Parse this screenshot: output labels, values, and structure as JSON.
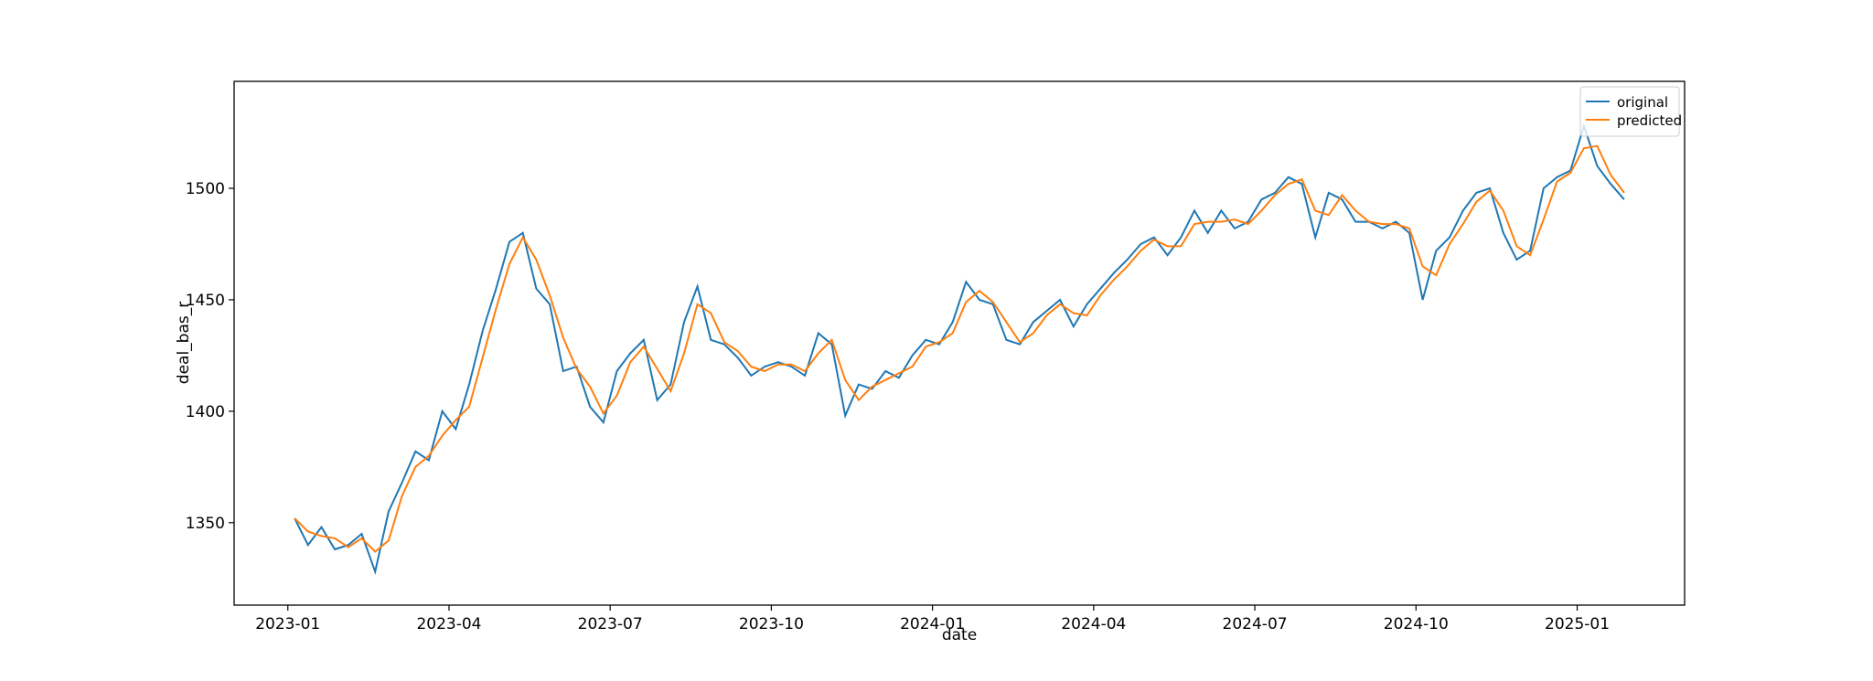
{
  "chart_data": {
    "type": "line",
    "x_label": "date",
    "y_label": "deal_bas_r",
    "x": [
      "2023-01",
      "2023-01",
      "2023-01",
      "2023-01",
      "2023-02",
      "2023-02",
      "2023-02",
      "2023-02",
      "2023-03",
      "2023-03",
      "2023-03",
      "2023-03",
      "2023-04",
      "2023-04",
      "2023-04",
      "2023-04",
      "2023-05",
      "2023-05",
      "2023-05",
      "2023-05",
      "2023-06",
      "2023-06",
      "2023-06",
      "2023-06",
      "2023-07",
      "2023-07",
      "2023-07",
      "2023-07",
      "2023-08",
      "2023-08",
      "2023-08",
      "2023-08",
      "2023-09",
      "2023-09",
      "2023-09",
      "2023-09",
      "2023-10",
      "2023-10",
      "2023-10",
      "2023-10",
      "2023-11",
      "2023-11",
      "2023-11",
      "2023-11",
      "2023-12",
      "2023-12",
      "2023-12",
      "2023-12",
      "2024-01",
      "2024-01",
      "2024-01",
      "2024-01",
      "2024-02",
      "2024-02",
      "2024-02",
      "2024-02",
      "2024-03",
      "2024-03",
      "2024-03",
      "2024-03",
      "2024-04",
      "2024-04",
      "2024-04",
      "2024-04",
      "2024-05",
      "2024-05",
      "2024-05",
      "2024-05",
      "2024-06",
      "2024-06",
      "2024-06",
      "2024-06",
      "2024-07",
      "2024-07",
      "2024-07",
      "2024-07",
      "2024-08",
      "2024-08",
      "2024-08",
      "2024-08",
      "2024-09",
      "2024-09",
      "2024-09",
      "2024-09",
      "2024-10",
      "2024-10",
      "2024-10",
      "2024-10",
      "2024-11",
      "2024-11",
      "2024-11",
      "2024-11",
      "2024-12",
      "2024-12",
      "2024-12",
      "2024-12",
      "2025-01",
      "2025-01",
      "2025-01",
      "2025-01"
    ],
    "series": [
      {
        "name": "original",
        "color": "#1f77b4",
        "values": [
          1352,
          1340,
          1348,
          1338,
          1340,
          1345,
          1328,
          1355,
          1368,
          1382,
          1378,
          1400,
          1392,
          1412,
          1436,
          1455,
          1476,
          1480,
          1455,
          1448,
          1418,
          1420,
          1402,
          1395,
          1418,
          1426,
          1432,
          1405,
          1412,
          1440,
          1456,
          1432,
          1430,
          1424,
          1416,
          1420,
          1422,
          1420,
          1416,
          1435,
          1430,
          1398,
          1412,
          1410,
          1418,
          1415,
          1425,
          1432,
          1430,
          1440,
          1458,
          1450,
          1448,
          1432,
          1430,
          1440,
          1445,
          1450,
          1438,
          1448,
          1455,
          1462,
          1468,
          1475,
          1478,
          1470,
          1478,
          1490,
          1480,
          1490,
          1482,
          1485,
          1495,
          1498,
          1505,
          1502,
          1478,
          1498,
          1495,
          1485,
          1485,
          1482,
          1485,
          1480,
          1450,
          1472,
          1478,
          1490,
          1498,
          1500,
          1480,
          1468,
          1472,
          1500,
          1505,
          1508,
          1528,
          1510,
          1502,
          1495
        ]
      },
      {
        "name": "predicted",
        "color": "#ff7f0e",
        "values": [
          1352,
          1346,
          1344,
          1343,
          1339,
          1343,
          1337,
          1342,
          1362,
          1375,
          1380,
          1389,
          1396,
          1402,
          1424,
          1446,
          1466,
          1478,
          1468,
          1452,
          1433,
          1419,
          1411,
          1399,
          1407,
          1422,
          1429,
          1419,
          1409,
          1426,
          1448,
          1444,
          1431,
          1427,
          1420,
          1418,
          1421,
          1421,
          1418,
          1426,
          1432,
          1414,
          1405,
          1411,
          1414,
          1417,
          1420,
          1429,
          1431,
          1435,
          1449,
          1454,
          1449,
          1440,
          1431,
          1435,
          1443,
          1448,
          1444,
          1443,
          1452,
          1459,
          1465,
          1472,
          1477,
          1474,
          1474,
          1484,
          1485,
          1485,
          1486,
          1484,
          1490,
          1497,
          1502,
          1504,
          1490,
          1488,
          1497,
          1490,
          1485,
          1484,
          1484,
          1482,
          1465,
          1461,
          1475,
          1484,
          1494,
          1499,
          1490,
          1474,
          1470,
          1486,
          1503,
          1507,
          1518,
          1519,
          1506,
          1498
        ]
      }
    ],
    "xlim": [
      "2022-12",
      "2025-03"
    ],
    "xticks": [
      "2023-01",
      "2023-04",
      "2023-07",
      "2023-10",
      "2024-01",
      "2024-04",
      "2024-07",
      "2024-10",
      "2025-01"
    ],
    "ylim": [
      1313,
      1548
    ],
    "yticks": [
      1350,
      1400,
      1450,
      1500
    ],
    "legend": "upper right",
    "grid": false
  }
}
